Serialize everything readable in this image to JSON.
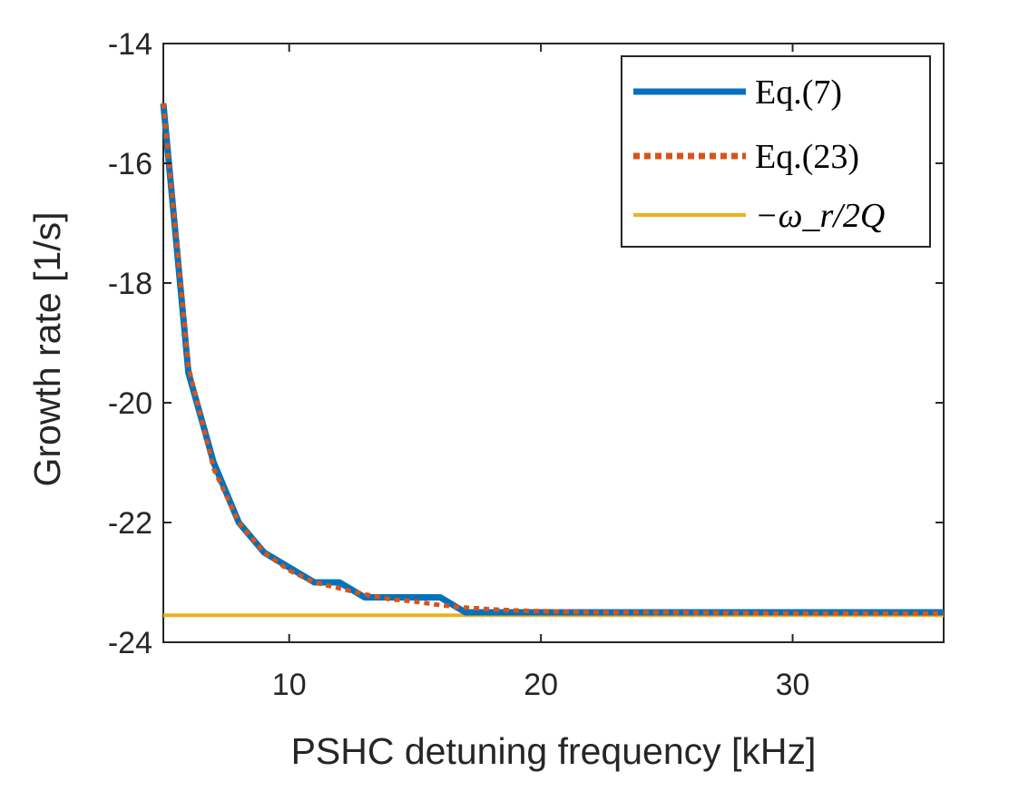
{
  "chart_data": {
    "type": "line",
    "title": "",
    "xlabel": "PSHC detuning frequency [kHz]",
    "ylabel": "Growth rate [1/s]",
    "xlim": [
      5,
      36
    ],
    "ylim": [
      -24,
      -14
    ],
    "xticks": [
      10,
      20,
      30
    ],
    "yticks": [
      -24,
      -22,
      -20,
      -18,
      -16,
      -14
    ],
    "xtick_labels": [
      "10",
      "20",
      "30"
    ],
    "ytick_labels": [
      "-24",
      "-22",
      "-20",
      "-18",
      "-16",
      "-14"
    ],
    "legend_position": "top-right",
    "series": [
      {
        "name": "Eq.(7)",
        "style": "solid",
        "color": "#0072BD",
        "x": [
          5,
          6,
          7,
          8,
          9,
          10,
          11,
          12,
          13,
          14,
          15,
          16,
          17,
          18,
          19,
          20,
          22,
          25,
          30,
          36
        ],
        "y": [
          -15.0,
          -19.5,
          -21.0,
          -22.0,
          -22.5,
          -22.75,
          -23.0,
          -23.0,
          -23.25,
          -23.25,
          -23.25,
          -23.25,
          -23.5,
          -23.5,
          -23.5,
          -23.5,
          -23.5,
          -23.5,
          -23.5,
          -23.5
        ]
      },
      {
        "name": "Eq.(23)",
        "style": "dotted",
        "color": "#D95319",
        "x": [
          5,
          6,
          7,
          8,
          9,
          10,
          11,
          12,
          13,
          14,
          15,
          16,
          17,
          18,
          19,
          20,
          22,
          25,
          30,
          36
        ],
        "y": [
          -15.0,
          -19.4,
          -21.1,
          -22.0,
          -22.5,
          -22.8,
          -23.0,
          -23.1,
          -23.2,
          -23.28,
          -23.32,
          -23.38,
          -23.42,
          -23.45,
          -23.47,
          -23.48,
          -23.5,
          -23.5,
          -23.52,
          -23.52
        ]
      },
      {
        "name": "−ω_r/2Q",
        "style": "solid",
        "color": "#EDB120",
        "x": [
          5,
          36
        ],
        "y": [
          -23.55,
          -23.55
        ]
      }
    ]
  }
}
